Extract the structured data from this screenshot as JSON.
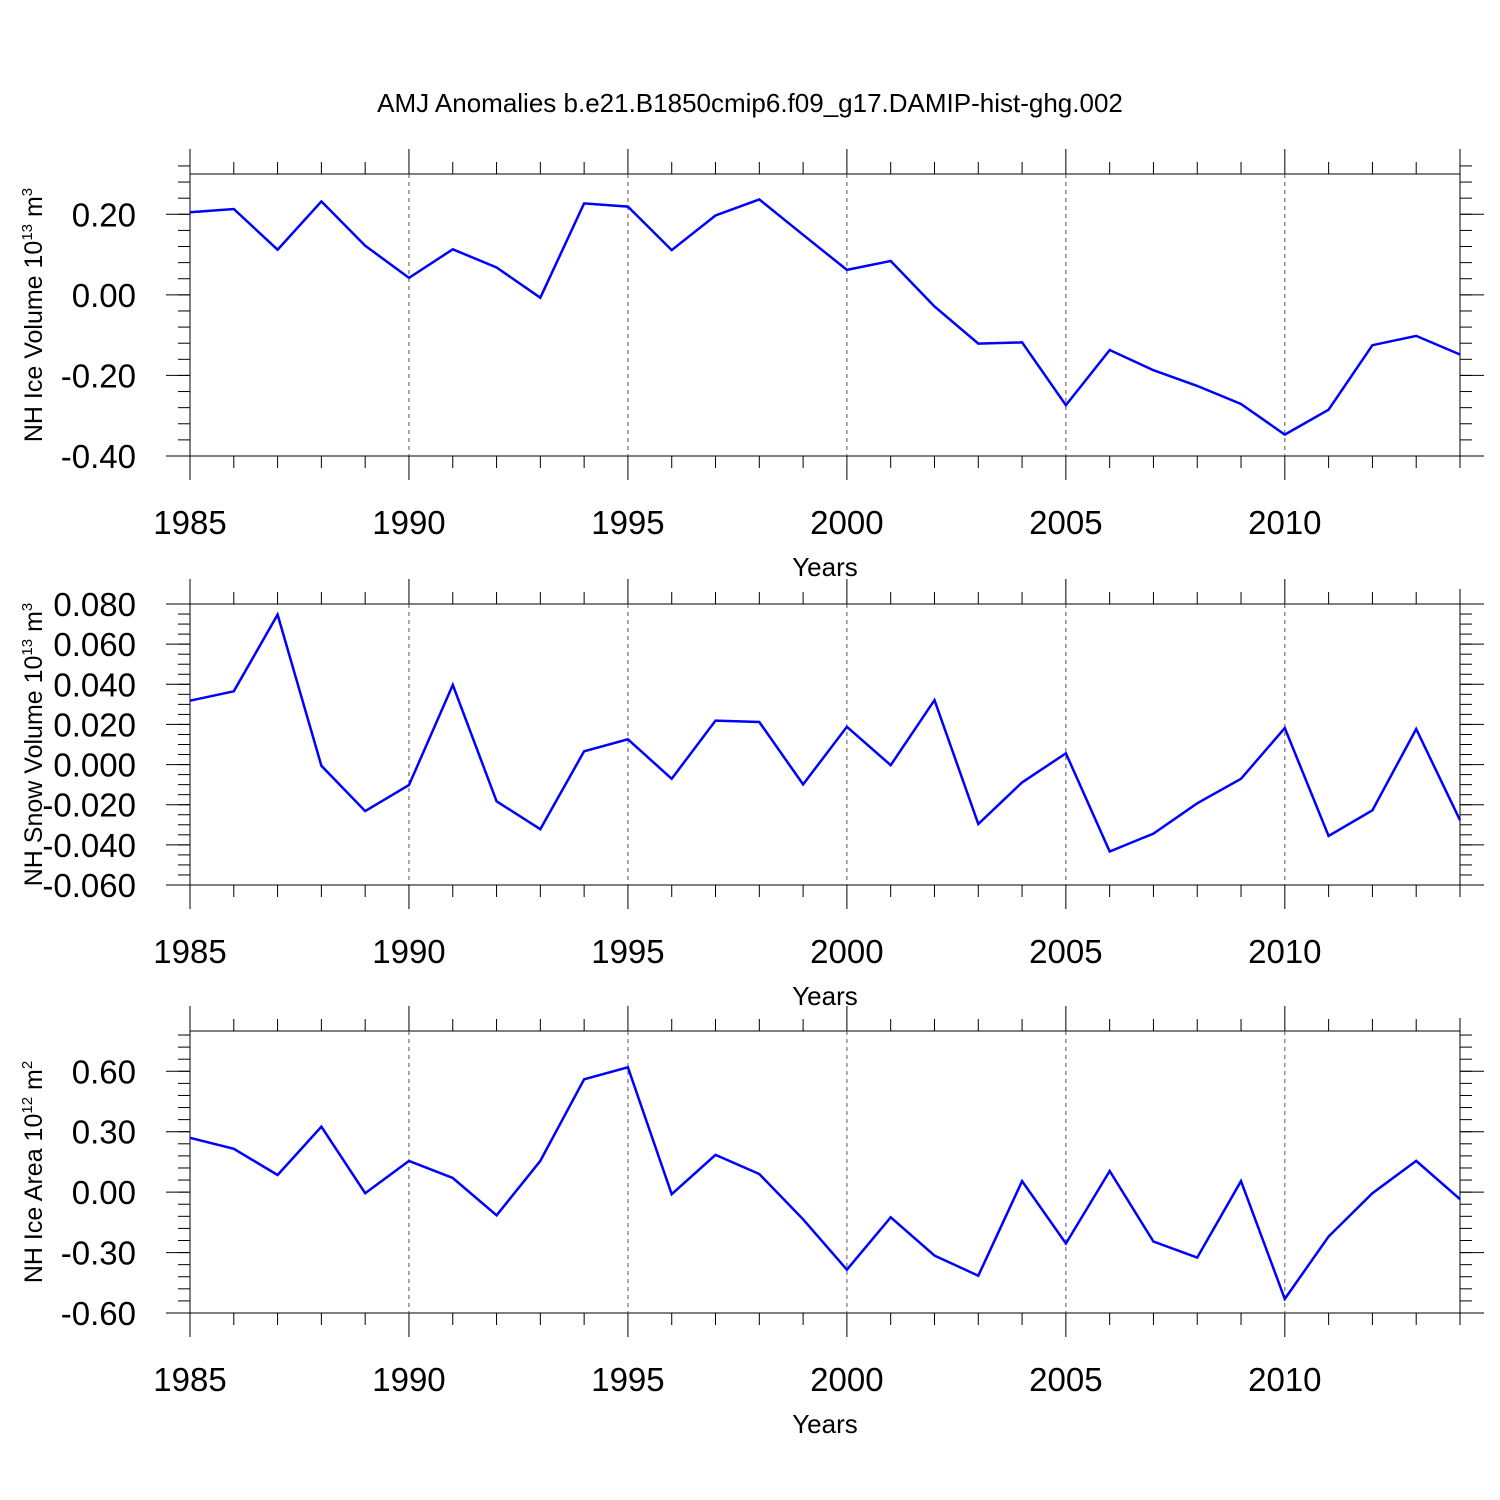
{
  "title": "AMJ Anomalies b.e21.B1850cmip6.f09_g17.DAMIP-hist-ghg.002",
  "line_color": "#0000ff",
  "chart_data": [
    {
      "type": "line",
      "ylabel_main": "NH Ice Volume 10",
      "ylabel_exp": "13",
      "ylabel_unit": " m",
      "ylabel_unit_exp": "3",
      "xlabel": "Years",
      "xlim": [
        1985,
        2014
      ],
      "ylim": [
        -0.4,
        0.3
      ],
      "yticks": [
        -0.4,
        -0.2,
        0.0,
        0.2
      ],
      "ytick_labels": [
        "-0.40",
        "-0.20",
        "0.00",
        "0.20"
      ],
      "yminor_step": 0.04,
      "xticks": [
        1985,
        1990,
        1995,
        2000,
        2005,
        2010
      ],
      "xtick_labels": [
        "1985",
        "1990",
        "1995",
        "2000",
        "2005",
        "2010"
      ],
      "x": [
        1985,
        1986,
        1987,
        1988,
        1989,
        1990,
        1991,
        1992,
        1993,
        1994,
        1995,
        1996,
        1997,
        1998,
        1999,
        2000,
        2001,
        2002,
        2003,
        2004,
        2005,
        2006,
        2007,
        2008,
        2009,
        2010,
        2011,
        2012,
        2013,
        2014
      ],
      "values": [
        0.205,
        0.213,
        0.112,
        0.232,
        0.122,
        0.042,
        0.113,
        0.068,
        -0.007,
        0.227,
        0.219,
        0.111,
        0.197,
        0.237,
        0.149,
        0.062,
        0.084,
        -0.029,
        -0.121,
        -0.118,
        -0.274,
        -0.137,
        -0.187,
        -0.226,
        -0.271,
        -0.347,
        -0.285,
        -0.125,
        -0.102,
        -0.148
      ]
    },
    {
      "type": "line",
      "ylabel_main": "NH Snow Volume 10",
      "ylabel_exp": "13",
      "ylabel_unit": " m",
      "ylabel_unit_exp": "3",
      "xlabel": "Years",
      "xlim": [
        1985,
        2014
      ],
      "ylim": [
        -0.06,
        0.08
      ],
      "yticks": [
        -0.06,
        -0.04,
        -0.02,
        0.0,
        0.02,
        0.04,
        0.06,
        0.08
      ],
      "ytick_labels": [
        "-0.060",
        "-0.040",
        "-0.020",
        "0.000",
        "0.020",
        "0.040",
        "0.060",
        "0.080"
      ],
      "yminor_step": 0.005,
      "xticks": [
        1985,
        1990,
        1995,
        2000,
        2005,
        2010
      ],
      "xtick_labels": [
        "1985",
        "1990",
        "1995",
        "2000",
        "2005",
        "2010"
      ],
      "x": [
        1985,
        1986,
        1987,
        1988,
        1989,
        1990,
        1991,
        1992,
        1993,
        1994,
        1995,
        1996,
        1997,
        1998,
        1999,
        2000,
        2001,
        2002,
        2003,
        2004,
        2005,
        2006,
        2007,
        2008,
        2009,
        2010,
        2011,
        2012,
        2013,
        2014
      ],
      "values": [
        0.0318,
        0.0365,
        0.0747,
        -0.0006,
        -0.0232,
        -0.0102,
        0.0397,
        -0.0183,
        -0.0322,
        0.0066,
        0.0126,
        -0.0071,
        0.0219,
        0.0212,
        -0.0099,
        0.0188,
        -0.0003,
        0.0321,
        -0.0296,
        -0.0089,
        0.0056,
        -0.0433,
        -0.0344,
        -0.0193,
        -0.0071,
        0.0182,
        -0.0356,
        -0.0228,
        0.0177,
        -0.0277
      ]
    },
    {
      "type": "line",
      "ylabel_main": "NH Ice Area 10",
      "ylabel_exp": "12",
      "ylabel_unit": " m",
      "ylabel_unit_exp": "2",
      "xlabel": "Years",
      "xlim": [
        1985,
        2014
      ],
      "ylim": [
        -0.6,
        0.8
      ],
      "yticks": [
        -0.6,
        -0.3,
        0.0,
        0.3,
        0.6
      ],
      "ytick_labels": [
        "-0.60",
        "-0.30",
        "0.00",
        "0.30",
        "0.60"
      ],
      "yminor_step": 0.06,
      "xticks": [
        1985,
        1990,
        1995,
        2000,
        2005,
        2010
      ],
      "xtick_labels": [
        "1985",
        "1990",
        "1995",
        "2000",
        "2005",
        "2010"
      ],
      "x": [
        1985,
        1986,
        1987,
        1988,
        1989,
        1990,
        1991,
        1992,
        1993,
        1994,
        1995,
        1996,
        1997,
        1998,
        1999,
        2000,
        2001,
        2002,
        2003,
        2004,
        2005,
        2006,
        2007,
        2008,
        2009,
        2010,
        2011,
        2012,
        2013,
        2014
      ],
      "values": [
        0.27,
        0.215,
        0.085,
        0.325,
        -0.005,
        0.155,
        0.07,
        -0.115,
        0.155,
        0.56,
        0.62,
        -0.01,
        0.185,
        0.09,
        -0.135,
        -0.385,
        -0.125,
        -0.315,
        -0.415,
        0.055,
        -0.255,
        0.105,
        -0.245,
        -0.325,
        0.055,
        -0.53,
        -0.22,
        -0.005,
        0.155,
        -0.035
      ]
    }
  ]
}
